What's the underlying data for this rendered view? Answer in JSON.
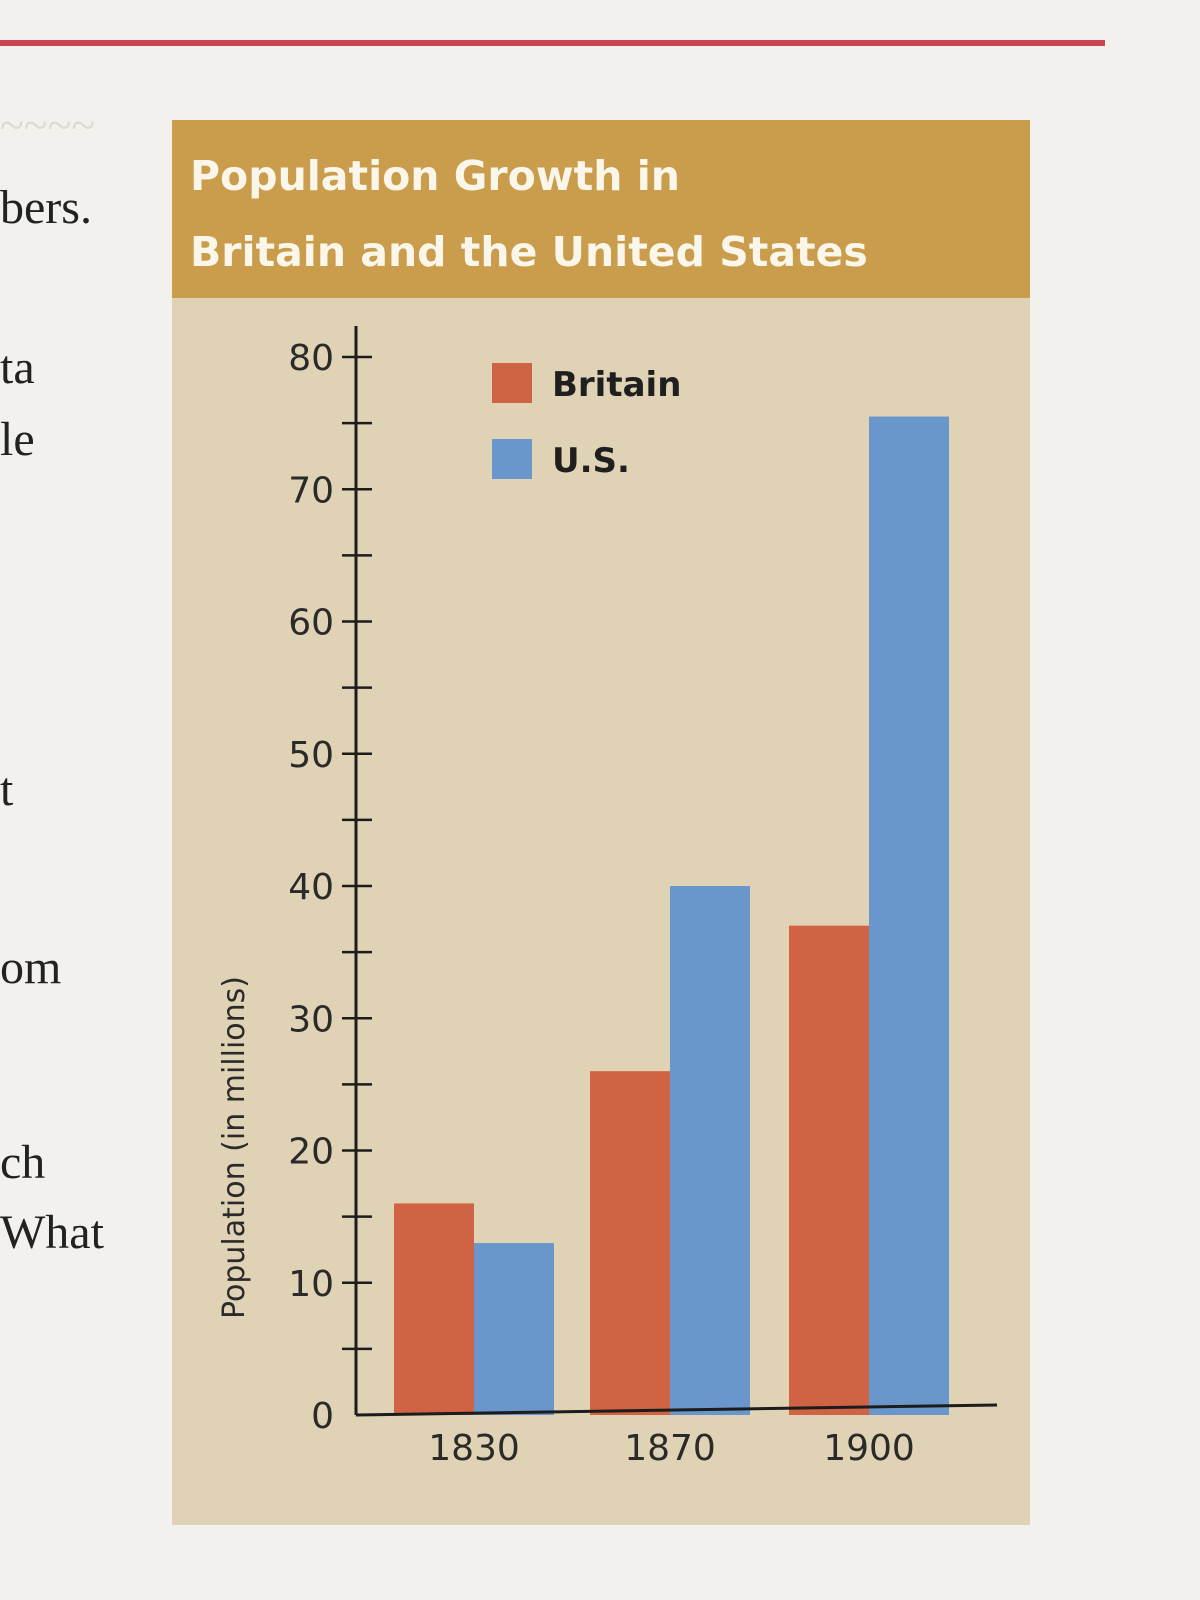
{
  "page": {
    "background_color": "#f3f1ee",
    "rule_color": "#c9454f",
    "body_text_fragments": [
      "bers.",
      "ta",
      "le",
      "t",
      "om",
      "ch",
      "What"
    ]
  },
  "figure": {
    "title_line1": "Population Growth in",
    "title_line2": "Britain and the United States",
    "header_color": "#c99d4c",
    "panel_color": "#e0d2b4"
  },
  "chart_data": {
    "type": "bar",
    "title": "Population Growth in Britain and the United States",
    "xlabel": "",
    "ylabel": "Population (in millions)",
    "categories": [
      "1830",
      "1870",
      "1900"
    ],
    "series": [
      {
        "name": "Britain",
        "color": "#cf6344",
        "values": [
          16,
          26,
          37
        ]
      },
      {
        "name": "U.S.",
        "color": "#6a97cb",
        "values": [
          13,
          40,
          75.5
        ]
      }
    ],
    "ylim": [
      0,
      80
    ],
    "yticks": [
      0,
      10,
      20,
      30,
      40,
      50,
      60,
      70,
      80
    ],
    "minor_tick_step": 5,
    "grid": false,
    "legend_position": "top-center"
  }
}
